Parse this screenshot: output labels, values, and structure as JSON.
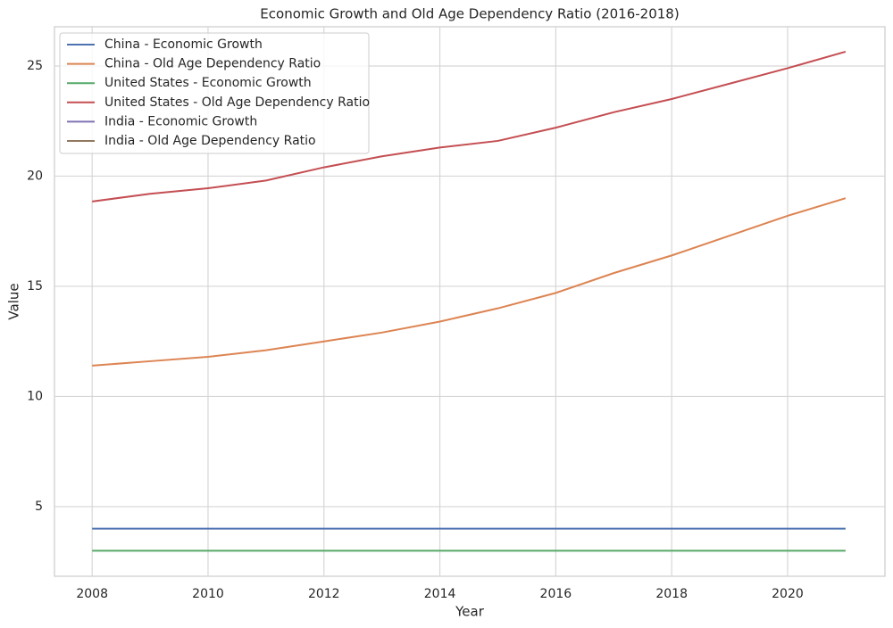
{
  "chart_data": {
    "type": "line",
    "title": "Economic Growth and Old Age Dependency Ratio (2016-2018)",
    "x_label": "Year",
    "y_label": "Value",
    "x": [
      2008,
      2009,
      2010,
      2011,
      2012,
      2013,
      2014,
      2015,
      2016,
      2017,
      2018,
      2019,
      2020,
      2021
    ],
    "series": [
      {
        "name": "China - Economic Growth",
        "color": "#4c72b0",
        "values": [
          4,
          4,
          4,
          4,
          4,
          4,
          4,
          4,
          4,
          4,
          4,
          4,
          4,
          4
        ]
      },
      {
        "name": "China - Old Age Dependency Ratio",
        "color": "#dd8452",
        "values": [
          11.4,
          11.6,
          11.8,
          12.1,
          12.5,
          12.9,
          13.4,
          14.0,
          14.7,
          15.6,
          16.4,
          17.3,
          18.2,
          19.0
        ]
      },
      {
        "name": "United States - Economic Growth",
        "color": "#55a868",
        "values": [
          3,
          3,
          3,
          3,
          3,
          3,
          3,
          3,
          3,
          3,
          3,
          3,
          3,
          3
        ]
      },
      {
        "name": "United States - Old Age Dependency Ratio",
        "color": "#c44e52",
        "values": [
          18.85,
          19.2,
          19.45,
          19.8,
          20.4,
          20.9,
          21.3,
          21.6,
          22.2,
          22.9,
          23.5,
          24.2,
          24.9,
          25.65
        ]
      },
      {
        "name": "India - Economic Growth",
        "color": "#8172b3",
        "values": [
          null,
          null,
          null,
          null,
          null,
          null,
          null,
          null,
          null,
          null,
          null,
          null,
          null,
          null
        ]
      },
      {
        "name": "India - Old Age Dependency Ratio",
        "color": "#937860",
        "values": [
          null,
          null,
          null,
          null,
          null,
          null,
          null,
          null,
          null,
          null,
          null,
          null,
          null,
          null
        ]
      }
    ],
    "xlim": [
      2007.35,
      2021.68
    ],
    "xticks": [
      2008,
      2010,
      2012,
      2014,
      2016,
      2018,
      2020
    ],
    "ylim": [
      1.84,
      26.78
    ],
    "yticks": [
      5,
      10,
      15,
      20,
      25
    ],
    "grid": true,
    "legend": "upper left"
  }
}
